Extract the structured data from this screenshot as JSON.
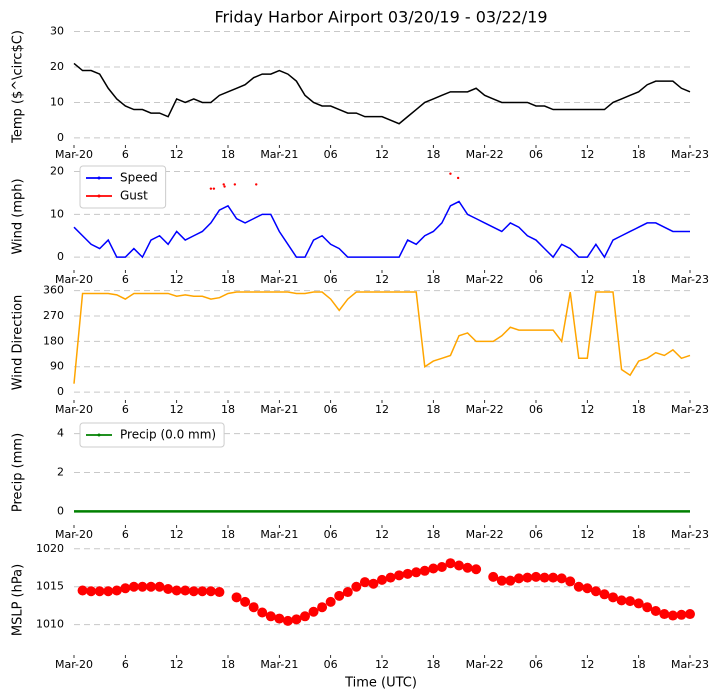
{
  "chart_data": [
    {
      "type": "line",
      "title": "Friday Harbor Airport 03/20/19 - 03/22/19",
      "ylabel": "Temp ($^\\circ$C)",
      "x": [
        0,
        1,
        2,
        3,
        4,
        5,
        6,
        7,
        8,
        9,
        10,
        11,
        12,
        13,
        14,
        15,
        16,
        17,
        18,
        19,
        20,
        21,
        22,
        23,
        24,
        25,
        26,
        27,
        28,
        29,
        30,
        31,
        32,
        33,
        34,
        35,
        36,
        37,
        38,
        39,
        40,
        41,
        42,
        43,
        44,
        45,
        46,
        47,
        48,
        49,
        50,
        51,
        52,
        53,
        54,
        55,
        56,
        57,
        58,
        59,
        60,
        61,
        62,
        63,
        64,
        65,
        66,
        67,
        68,
        69,
        70,
        71,
        72
      ],
      "series": [
        {
          "color": "#000000",
          "values": [
            21,
            19,
            19,
            18,
            14,
            11,
            9,
            8,
            8,
            7,
            7,
            6,
            11,
            10,
            11,
            10,
            10,
            12,
            13,
            14,
            15,
            17,
            18,
            18,
            19,
            18,
            16,
            12,
            10,
            9,
            9,
            8,
            7,
            7,
            6,
            6,
            6,
            5,
            4,
            6,
            8,
            10,
            11,
            12,
            13,
            13,
            13,
            14,
            12,
            11,
            10,
            10,
            10,
            10,
            9,
            9,
            8,
            8,
            8,
            8,
            8,
            8,
            8,
            10,
            11,
            12,
            13,
            15,
            16,
            16,
            16,
            14,
            13
          ]
        }
      ],
      "xlim": [
        0,
        72
      ],
      "ylim": [
        -2,
        31
      ],
      "yticks": [
        0,
        10,
        20,
        30
      ],
      "xticks": [
        {
          "value": 0,
          "label": "Mar-20"
        },
        6,
        12,
        18,
        {
          "value": 24,
          "label": "Mar-21"
        },
        {
          "value": 30,
          "label": "06"
        },
        {
          "value": 36,
          "label": "12"
        },
        {
          "value": 42,
          "label": "18"
        },
        {
          "value": 48,
          "label": "Mar-22"
        },
        {
          "value": 54,
          "label": "06"
        },
        {
          "value": 60,
          "label": "12"
        },
        {
          "value": 66,
          "label": "18"
        },
        {
          "value": 72,
          "label": "Mar-23"
        }
      ],
      "grid": true
    },
    {
      "type": "line",
      "ylabel": "Wind (mph)",
      "legend": "upper left",
      "x": [
        0,
        1,
        2,
        3,
        4,
        5,
        6,
        7,
        8,
        9,
        10,
        11,
        12,
        13,
        14,
        15,
        16,
        17,
        18,
        19,
        20,
        21,
        22,
        23,
        24,
        25,
        26,
        27,
        28,
        29,
        30,
        31,
        32,
        33,
        34,
        35,
        36,
        37,
        38,
        39,
        40,
        41,
        42,
        43,
        44,
        45,
        46,
        47,
        48,
        49,
        50,
        51,
        52,
        53,
        54,
        55,
        56,
        57,
        58,
        59,
        60,
        61,
        62,
        63,
        64,
        65,
        66,
        67,
        68,
        69,
        70,
        71,
        72
      ],
      "series": [
        {
          "name": "Speed",
          "color": "#0000ff",
          "values": [
            7,
            5,
            3,
            2,
            4,
            0,
            0,
            2,
            0,
            4,
            5,
            3,
            6,
            4,
            5,
            6,
            8,
            11,
            12,
            9,
            8,
            9,
            10,
            10,
            6,
            3,
            0,
            0,
            4,
            5,
            3,
            2,
            0,
            0,
            0,
            0,
            0,
            0,
            0,
            4,
            3,
            5,
            6,
            8,
            12,
            13,
            10,
            9,
            8,
            7,
            6,
            8,
            7,
            5,
            4,
            2,
            0,
            3,
            2,
            0,
            0,
            3,
            0,
            4,
            5,
            6,
            7,
            8,
            8,
            7,
            6,
            6,
            6
          ]
        },
        {
          "name": "Gust",
          "color": "#ff0000",
          "mode": "markers",
          "x": [
            16.0,
            16.35,
            17.5,
            17.6,
            18.8,
            21.3,
            44.0,
            44.9
          ],
          "values": [
            16,
            16,
            17,
            16.5,
            17,
            17,
            19.5,
            18.5
          ]
        }
      ],
      "xlim": [
        0,
        72
      ],
      "ylim": [
        -3,
        22
      ],
      "yticks": [
        0,
        10,
        20
      ],
      "xticks": [
        {
          "value": 0,
          "label": "Mar-20"
        },
        6,
        12,
        18,
        {
          "value": 24,
          "label": "Mar-21"
        },
        {
          "value": 30,
          "label": "06"
        },
        {
          "value": 36,
          "label": "12"
        },
        {
          "value": 42,
          "label": "18"
        },
        {
          "value": 48,
          "label": "Mar-22"
        },
        {
          "value": 54,
          "label": "06"
        },
        {
          "value": 60,
          "label": "12"
        },
        {
          "value": 66,
          "label": "18"
        },
        {
          "value": 72,
          "label": "Mar-23"
        }
      ],
      "grid": true
    },
    {
      "type": "line",
      "ylabel": "Wind Direction",
      "x": [
        0,
        1,
        2,
        3,
        4,
        5,
        6,
        7,
        8,
        9,
        10,
        11,
        12,
        13,
        14,
        15,
        16,
        17,
        18,
        19,
        20,
        21,
        22,
        23,
        24,
        25,
        26,
        27,
        28,
        29,
        30,
        31,
        32,
        33,
        34,
        35,
        36,
        37,
        38,
        39,
        40,
        41,
        42,
        43,
        44,
        45,
        46,
        47,
        48,
        49,
        50,
        51,
        52,
        53,
        54,
        55,
        56,
        57,
        58,
        59,
        60,
        61,
        62,
        63,
        64,
        65,
        66,
        67,
        68,
        69,
        70,
        71,
        72
      ],
      "series": [
        {
          "color": "#ffa500",
          "values": [
            30,
            350,
            350,
            350,
            350,
            345,
            330,
            350,
            350,
            350,
            350,
            350,
            340,
            345,
            340,
            340,
            330,
            335,
            350,
            355,
            355,
            355,
            355,
            355,
            355,
            355,
            350,
            350,
            355,
            355,
            330,
            290,
            330,
            355,
            355,
            355,
            355,
            355,
            355,
            355,
            355,
            90,
            110,
            120,
            130,
            200,
            210,
            180,
            180,
            180,
            200,
            230,
            220,
            220,
            220,
            220,
            220,
            180,
            355,
            120,
            120,
            355,
            355,
            355,
            80,
            60,
            110,
            120,
            140,
            130,
            150,
            120,
            130
          ]
        }
      ],
      "xlim": [
        0,
        72
      ],
      "ylim": [
        -28,
        380
      ],
      "yticks": [
        0,
        90,
        180,
        270,
        360
      ],
      "xticks": [
        {
          "value": 0,
          "label": "Mar-20"
        },
        6,
        12,
        18,
        {
          "value": 24,
          "label": "Mar-21"
        },
        {
          "value": 30,
          "label": "06"
        },
        {
          "value": 36,
          "label": "12"
        },
        {
          "value": 42,
          "label": "18"
        },
        {
          "value": 48,
          "label": "Mar-22"
        },
        {
          "value": 54,
          "label": "06"
        },
        {
          "value": 60,
          "label": "12"
        },
        {
          "value": 66,
          "label": "18"
        },
        {
          "value": 72,
          "label": "Mar-23"
        }
      ],
      "grid": true
    },
    {
      "type": "line",
      "ylabel": "Precip (mm)",
      "legend": "upper left",
      "x": [
        0,
        1,
        2,
        3,
        4,
        5,
        6,
        7,
        8,
        9,
        10,
        11,
        12,
        13,
        14,
        15,
        16,
        17,
        18,
        19,
        20,
        21,
        22,
        23,
        24,
        25,
        26,
        27,
        28,
        29,
        30,
        31,
        32,
        33,
        34,
        35,
        36,
        37,
        38,
        39,
        40,
        41,
        42,
        43,
        44,
        45,
        46,
        47,
        48,
        49,
        50,
        51,
        52,
        53,
        54,
        55,
        56,
        57,
        58,
        59,
        60,
        61,
        62,
        63,
        64,
        65,
        66,
        67,
        68,
        69,
        70,
        71,
        72
      ],
      "series": [
        {
          "name": "Precip (0.0 mm)",
          "color": "#008000",
          "values": [
            0,
            0,
            0,
            0,
            0,
            0,
            0,
            0,
            0,
            0,
            0,
            0,
            0,
            0,
            0,
            0,
            0,
            0,
            0,
            0,
            0,
            0,
            0,
            0,
            0,
            0,
            0,
            0,
            0,
            0,
            0,
            0,
            0,
            0,
            0,
            0,
            0,
            0,
            0,
            0,
            0,
            0,
            0,
            0,
            0,
            0,
            0,
            0,
            0,
            0,
            0,
            0,
            0,
            0,
            0,
            0,
            0,
            0,
            0,
            0,
            0,
            0,
            0,
            0,
            0,
            0,
            0,
            0,
            0,
            0,
            0,
            0,
            0
          ]
        }
      ],
      "xlim": [
        0,
        72
      ],
      "ylim": [
        -0.7,
        4.7
      ],
      "yticks": [
        0,
        2,
        4
      ],
      "xticks": [
        {
          "value": 0,
          "label": "Mar-20"
        },
        6,
        12,
        18,
        {
          "value": 24,
          "label": "Mar-21"
        },
        {
          "value": 30,
          "label": "06"
        },
        {
          "value": 36,
          "label": "12"
        },
        {
          "value": 42,
          "label": "18"
        },
        {
          "value": 48,
          "label": "Mar-22"
        },
        {
          "value": 54,
          "label": "06"
        },
        {
          "value": 60,
          "label": "12"
        },
        {
          "value": 66,
          "label": "18"
        },
        {
          "value": 72,
          "label": "Mar-23"
        }
      ],
      "grid": true
    },
    {
      "type": "scatter",
      "ylabel": "MSLP (hPa)",
      "xlabel": "Time (UTC)",
      "x": [
        1,
        2,
        3,
        4,
        5,
        6,
        7,
        8,
        9,
        10,
        11,
        12,
        13,
        14,
        15,
        16,
        17,
        18,
        19,
        20,
        21,
        22,
        23,
        24,
        25,
        26,
        27,
        28,
        29,
        30,
        31,
        32,
        33,
        34,
        35,
        36,
        37,
        38,
        39,
        40,
        41,
        42,
        43,
        44,
        45,
        46,
        47,
        48,
        49,
        50,
        51,
        52,
        53,
        54,
        55,
        56,
        57,
        58,
        59,
        60,
        61,
        62,
        63,
        64,
        65,
        66,
        67,
        68,
        69,
        70,
        71,
        72
      ],
      "series": [
        {
          "color": "#ff0000",
          "values": [
            1014.5,
            1014.4,
            1014.4,
            1014.4,
            1014.5,
            1014.8,
            1015,
            1015,
            1015,
            1015,
            1014.7,
            1014.5,
            1014.5,
            1014.4,
            1014.4,
            1014.4,
            1014.3,
            null,
            1013.6,
            1013,
            1012.3,
            1011.6,
            1011.1,
            1010.8,
            1010.5,
            1010.7,
            1011.1,
            1011.7,
            1012.3,
            1013,
            1013.8,
            1014.3,
            1015,
            1015.6,
            1015.4,
            1015.9,
            1016.2,
            1016.5,
            1016.7,
            1016.9,
            1017.1,
            1017.4,
            1017.6,
            1018.1,
            1017.8,
            1017.5,
            1017.3,
            null,
            1016.3,
            1015.8,
            1015.8,
            1016.1,
            1016.2,
            1016.3,
            1016.2,
            1016.2,
            1016.1,
            1015.7,
            1015,
            1014.8,
            1014.4,
            1014,
            1013.6,
            1013.2,
            1013.1,
            1012.8,
            1012.3,
            1011.8,
            1011.4,
            1011.2,
            1011.3,
            1011.4
          ]
        }
      ],
      "xlim": [
        0,
        72
      ],
      "ylim": [
        1006,
        1020.5
      ],
      "yticks": [
        1010,
        1015,
        1020
      ],
      "xticks": [
        {
          "value": 0,
          "label": "Mar-20"
        },
        6,
        12,
        18,
        {
          "value": 24,
          "label": "Mar-21"
        },
        {
          "value": 30,
          "label": "06"
        },
        {
          "value": 36,
          "label": "12"
        },
        {
          "value": 42,
          "label": "18"
        },
        {
          "value": 48,
          "label": "Mar-22"
        },
        {
          "value": 54,
          "label": "06"
        },
        {
          "value": 60,
          "label": "12"
        },
        {
          "value": 66,
          "label": "18"
        },
        {
          "value": 72,
          "label": "Mar-23"
        }
      ],
      "grid": true
    }
  ]
}
